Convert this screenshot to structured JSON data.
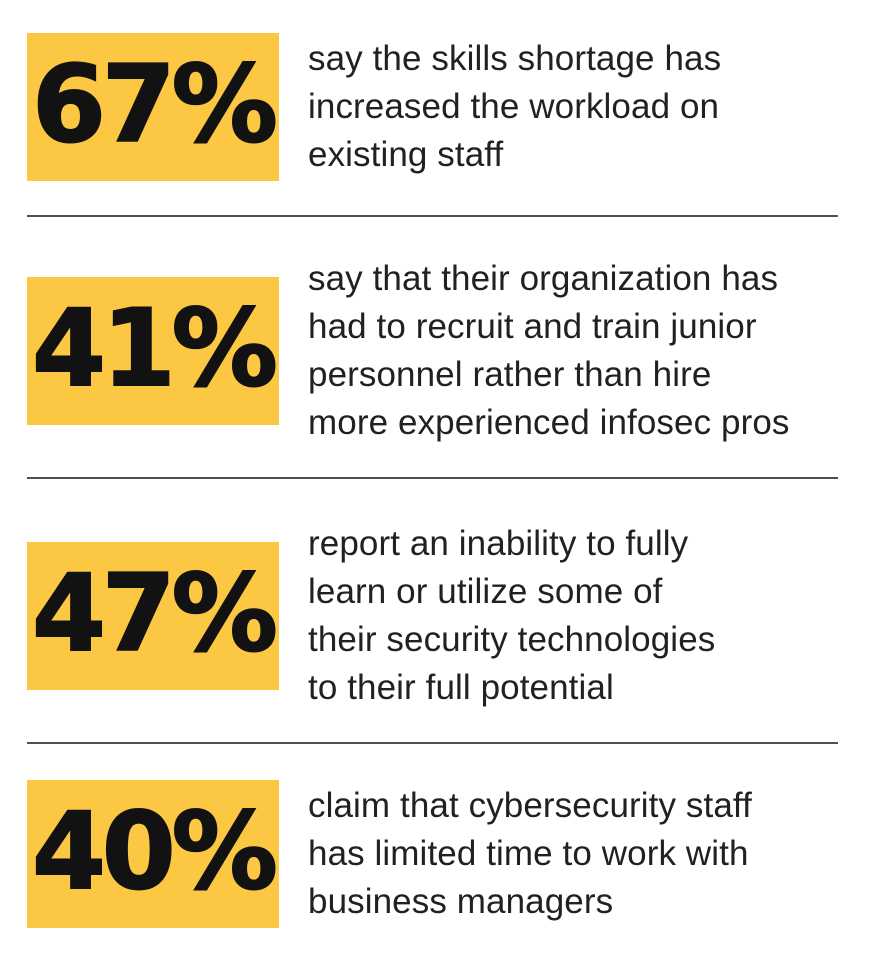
{
  "page": {
    "background": "#ffffff",
    "accent_yellow": "#FCC742",
    "number_color": "#121212",
    "text_color": "#212121",
    "divider_color": "#4f4f4f"
  },
  "stats": [
    {
      "value": "67%",
      "lines": [
        "say the skills shortage has",
        "increased the workload on",
        "existing staff"
      ]
    },
    {
      "value": "41%",
      "lines": [
        "say that their organization has",
        "had to recruit and train junior",
        "personnel rather than hire",
        "more experienced infosec pros"
      ]
    },
    {
      "value": "47%",
      "lines": [
        "report an inability to fully",
        "learn or utilize some of",
        "their security technologies",
        "to their full potential"
      ]
    },
    {
      "value": "40%",
      "lines": [
        "claim that cybersecurity staff",
        "has limited time to work with",
        "business managers"
      ]
    }
  ],
  "chart_data": {
    "type": "table",
    "title": "",
    "unit": "%",
    "categories": [
      "say the skills shortage has increased the workload on existing staff",
      "say that their organization has had to recruit and train junior personnel rather than hire more experienced infosec pros",
      "report an inability to fully learn or utilize some of their security technologies to their full potential",
      "claim that cybersecurity staff has limited time to work with business managers"
    ],
    "values": [
      67,
      41,
      47,
      40
    ]
  }
}
